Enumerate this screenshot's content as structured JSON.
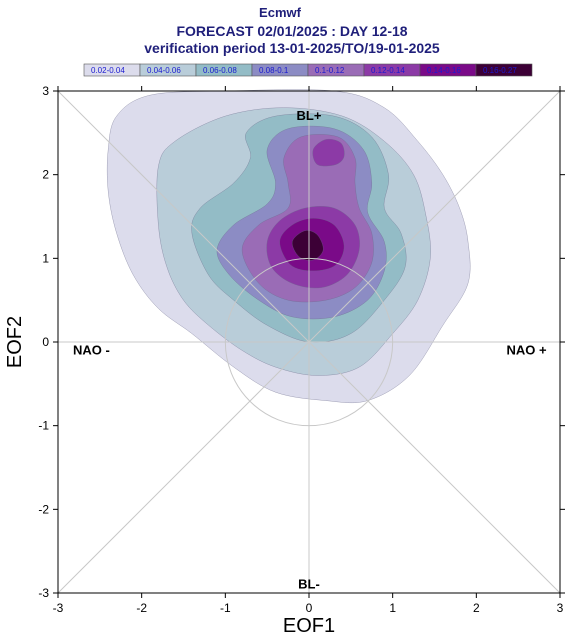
{
  "chart_data": {
    "type": "heatmap",
    "title": "Ecmwf",
    "subtitle": "FORECAST 02/01/2025 : DAY 12-18",
    "subtitle2": "verification period 13-01-2025/TO/19-01-2025",
    "xlabel": "EOF1",
    "ylabel": "EOF2",
    "xlim": [
      -3,
      3
    ],
    "ylim": [
      -3,
      3
    ],
    "xticks": [
      "-3",
      "-2",
      "-1",
      "0",
      "1",
      "2",
      "3"
    ],
    "yticks": [
      "3",
      "2",
      "1",
      "0",
      "-1",
      "-2",
      "-3"
    ],
    "legend_position": "top",
    "legend": [
      {
        "label": "0.02-0.04",
        "color": "#dcdcec"
      },
      {
        "label": "0.04-0.06",
        "color": "#b9cdd9"
      },
      {
        "label": "0.06-0.08",
        "color": "#93bcc6"
      },
      {
        "label": "0.08-0.1",
        "color": "#8c8cc4"
      },
      {
        "label": "0.1-0.12",
        "color": "#9a6cb6"
      },
      {
        "label": "0.12-0.14",
        "color": "#8c3aa6"
      },
      {
        "label": "0.14-0.16",
        "color": "#7a0a88"
      },
      {
        "label": "0.16-0.27",
        "color": "#3c0036"
      }
    ],
    "regimes": [
      {
        "label": "BL+",
        "x": 0,
        "y": 2.7
      },
      {
        "label": "BL-",
        "x": 0,
        "y": -2.9
      },
      {
        "label": "NAO -",
        "x": -2.6,
        "y": -0.1
      },
      {
        "label": "NAO +",
        "x": 2.6,
        "y": -0.1
      }
    ],
    "circle": {
      "center": [
        0,
        0
      ],
      "radius": 1
    },
    "contours": [
      {
        "level": "0.02-0.04",
        "points": [
          [
            -2.4,
            2.3
          ],
          [
            -2.3,
            2.7
          ],
          [
            -1.9,
            2.95
          ],
          [
            -1.0,
            3.0
          ],
          [
            0.3,
            3.0
          ],
          [
            0.9,
            2.8
          ],
          [
            1.3,
            2.4
          ],
          [
            1.6,
            2.0
          ],
          [
            1.8,
            1.6
          ],
          [
            1.9,
            1.2
          ],
          [
            1.9,
            0.7
          ],
          [
            1.6,
            0.2
          ],
          [
            1.2,
            -0.4
          ],
          [
            0.7,
            -0.7
          ],
          [
            0.2,
            -0.7
          ],
          [
            -0.4,
            -0.6
          ],
          [
            -0.9,
            -0.3
          ],
          [
            -1.4,
            0.1
          ],
          [
            -1.8,
            0.4
          ],
          [
            -2.1,
            0.8
          ],
          [
            -2.3,
            1.3
          ],
          [
            -2.4,
            1.8
          ]
        ]
      },
      {
        "level": "0.04-0.06",
        "points": [
          [
            -1.8,
            2.1
          ],
          [
            -1.6,
            2.4
          ],
          [
            -1.0,
            2.7
          ],
          [
            -0.3,
            2.8
          ],
          [
            0.4,
            2.7
          ],
          [
            0.9,
            2.4
          ],
          [
            1.25,
            2.0
          ],
          [
            1.4,
            1.5
          ],
          [
            1.45,
            1.0
          ],
          [
            1.3,
            0.5
          ],
          [
            1.0,
            0.1
          ],
          [
            0.6,
            -0.3
          ],
          [
            0.1,
            -0.4
          ],
          [
            -0.4,
            -0.3
          ],
          [
            -0.8,
            -0.1
          ],
          [
            -1.2,
            0.2
          ],
          [
            -1.5,
            0.5
          ],
          [
            -1.7,
            0.9
          ],
          [
            -1.8,
            1.4
          ]
        ]
      },
      {
        "level": "0.06-0.08",
        "points": [
          [
            -1.4,
            1.3
          ],
          [
            -1.3,
            1.6
          ],
          [
            -0.9,
            1.9
          ],
          [
            -0.7,
            2.2
          ],
          [
            -0.75,
            2.5
          ],
          [
            -0.4,
            2.7
          ],
          [
            0.3,
            2.7
          ],
          [
            0.75,
            2.45
          ],
          [
            0.95,
            2.0
          ],
          [
            0.9,
            1.6
          ],
          [
            1.1,
            1.3
          ],
          [
            1.15,
            0.9
          ],
          [
            0.9,
            0.5
          ],
          [
            0.5,
            0.1
          ],
          [
            0.0,
            0.0
          ],
          [
            -0.5,
            0.2
          ],
          [
            -0.9,
            0.5
          ],
          [
            -1.2,
            0.8
          ]
        ]
      },
      {
        "level": "0.08-0.1",
        "points": [
          [
            -1.1,
            1.1
          ],
          [
            -0.9,
            1.4
          ],
          [
            -0.5,
            1.65
          ],
          [
            -0.4,
            1.9
          ],
          [
            -0.5,
            2.3
          ],
          [
            -0.25,
            2.55
          ],
          [
            0.3,
            2.55
          ],
          [
            0.65,
            2.3
          ],
          [
            0.75,
            1.9
          ],
          [
            0.7,
            1.55
          ],
          [
            0.9,
            1.2
          ],
          [
            0.9,
            0.85
          ],
          [
            0.7,
            0.5
          ],
          [
            0.3,
            0.3
          ],
          [
            -0.2,
            0.3
          ],
          [
            -0.6,
            0.5
          ],
          [
            -0.95,
            0.8
          ]
        ]
      },
      {
        "level": "0.1-0.12",
        "points": [
          [
            -0.8,
            1.1
          ],
          [
            -0.6,
            1.4
          ],
          [
            -0.25,
            1.6
          ],
          [
            -0.25,
            1.9
          ],
          [
            -0.3,
            2.2
          ],
          [
            -0.1,
            2.45
          ],
          [
            0.35,
            2.45
          ],
          [
            0.55,
            2.2
          ],
          [
            0.55,
            1.9
          ],
          [
            0.6,
            1.6
          ],
          [
            0.75,
            1.3
          ],
          [
            0.75,
            0.95
          ],
          [
            0.55,
            0.65
          ],
          [
            0.2,
            0.5
          ],
          [
            -0.25,
            0.5
          ],
          [
            -0.6,
            0.7
          ]
        ]
      },
      {
        "level": "0.12-0.14",
        "points": [
          [
            -0.5,
            1.2
          ],
          [
            -0.35,
            1.45
          ],
          [
            -0.05,
            1.6
          ],
          [
            0.3,
            1.6
          ],
          [
            0.55,
            1.4
          ],
          [
            0.6,
            1.1
          ],
          [
            0.45,
            0.8
          ],
          [
            0.15,
            0.65
          ],
          [
            -0.2,
            0.7
          ],
          [
            -0.45,
            0.9
          ]
        ]
      },
      {
        "level": "0.12-0.14",
        "points": [
          [
            0.05,
            2.3
          ],
          [
            0.2,
            2.42
          ],
          [
            0.38,
            2.38
          ],
          [
            0.42,
            2.22
          ],
          [
            0.32,
            2.12
          ],
          [
            0.1,
            2.12
          ]
        ]
      },
      {
        "level": "0.14-0.16",
        "points": [
          [
            -0.35,
            1.2
          ],
          [
            -0.2,
            1.4
          ],
          [
            0.05,
            1.48
          ],
          [
            0.3,
            1.4
          ],
          [
            0.42,
            1.15
          ],
          [
            0.32,
            0.92
          ],
          [
            0.05,
            0.85
          ],
          [
            -0.22,
            0.92
          ]
        ]
      },
      {
        "level": "0.16-0.27",
        "points": [
          [
            -0.2,
            1.2
          ],
          [
            -0.05,
            1.33
          ],
          [
            0.1,
            1.28
          ],
          [
            0.17,
            1.1
          ],
          [
            0.05,
            0.98
          ],
          [
            -0.12,
            1.02
          ]
        ]
      }
    ]
  }
}
